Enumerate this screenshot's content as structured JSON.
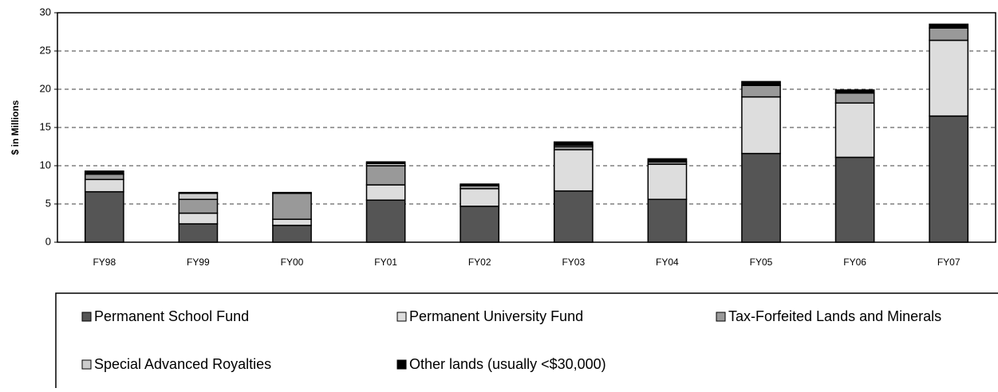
{
  "chart_data": {
    "type": "stacked_bar",
    "y_label": "$ in Millions",
    "categories": [
      "FY98",
      "FY99",
      "FY00",
      "FY01",
      "FY02",
      "FY03",
      "FY04",
      "FY05",
      "FY06",
      "FY07"
    ],
    "series": [
      {
        "name": "Permanent School Fund",
        "color": "#555555",
        "values": [
          6.6,
          2.4,
          2.2,
          5.5,
          4.7,
          6.7,
          5.6,
          11.6,
          11.1,
          16.5
        ]
      },
      {
        "name": "Permanent University Fund",
        "color": "#dddddd",
        "values": [
          1.6,
          1.4,
          0.8,
          2.0,
          2.3,
          5.4,
          4.6,
          7.4,
          7.1,
          9.9
        ]
      },
      {
        "name": "Tax-Forfeited Lands and Minerals",
        "color": "#999999",
        "values": [
          0.7,
          1.8,
          3.4,
          2.5,
          0.4,
          0.4,
          0.3,
          1.5,
          1.3,
          1.6
        ]
      },
      {
        "name": "Special Advanced Royalties",
        "color": "#cccccc",
        "values": [
          0,
          0.8,
          0,
          0.3,
          0,
          0.2,
          0,
          0,
          0,
          0
        ]
      },
      {
        "name": "Other lands (usually <$30,000)",
        "color": "#000000",
        "values": [
          0.4,
          0.1,
          0.1,
          0.2,
          0.2,
          0.4,
          0.4,
          0.5,
          0.4,
          0.5
        ]
      }
    ],
    "ylim": [
      0,
      30
    ],
    "yticks": [
      0,
      5,
      10,
      15,
      20,
      25,
      30
    ],
    "grid": true
  }
}
